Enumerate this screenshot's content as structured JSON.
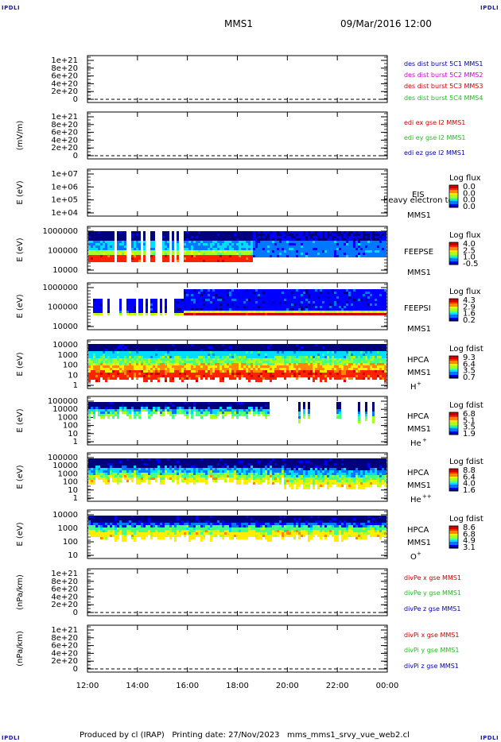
{
  "corners": {
    "tl": "IPDLI",
    "tr": "IPDLI",
    "bl": "IPDLI",
    "br": "IPDLI"
  },
  "header": {
    "spacecraft": "MMS1",
    "datetime": "09/Mar/2016 12:00"
  },
  "footer": {
    "text": "Produced by cl (IRAP)   Printing date: 27/Nov/2023   mms_mms1_srvy_vue_web2.cl"
  },
  "colors": {
    "red": "#cc0000",
    "magenta": "#cc00cc",
    "green": "#22bb22",
    "blue": "#0000aa"
  },
  "chart_data": [
    {
      "type": "line",
      "id": "des",
      "ylabel": "",
      "yticks": [
        "1e+21",
        "8e+20",
        "6e+20",
        "4e+20",
        "2e+20",
        "0"
      ],
      "series": [
        {
          "name": "des_dist_burst_5C1_MMS1",
          "color": "#0000aa"
        },
        {
          "name": "des_dist_burst_5C2_MMS2",
          "color": "#cc00cc"
        },
        {
          "name": "des_dist_burst_5C3_MMS3",
          "color": "#cc0000"
        },
        {
          "name": "des_dist_burst_5C4_MMS4",
          "color": "#22bb22"
        }
      ]
    },
    {
      "type": "line",
      "id": "edi",
      "ylabel": "(mV/m)",
      "yticks": [
        "1e+21",
        "8e+20",
        "6e+20",
        "4e+20",
        "2e+20",
        "0"
      ],
      "series": [
        {
          "name": "edi_ex_gse_l2_MMS1",
          "color": "#cc0000"
        },
        {
          "name": "edi_ey_gse_l2_MMS1",
          "color": "#22bb22"
        },
        {
          "name": "edi_ez_gse_l2_MMS1",
          "color": "#0000aa"
        }
      ]
    },
    {
      "type": "heatmap",
      "id": "eis",
      "ylabel": "E (eV)",
      "yticks": [
        "1e+07",
        "1e+06",
        "1e+05",
        "1e+04"
      ],
      "instrument": [
        "EIS",
        "MMS1"
      ],
      "overlay": "heavy electron to",
      "cbar_title": "Log flux",
      "cbar_ticks": [
        "0.0",
        "0.0",
        "0.0",
        "0.0"
      ]
    },
    {
      "type": "heatmap",
      "id": "feepse",
      "ylabel": "E (eV)",
      "yticks": [
        "1000000",
        "100000",
        "10000"
      ],
      "instrument": [
        "FEEPSE",
        "MMS1"
      ],
      "cbar_title": "Log flux",
      "cbar_ticks": [
        "4.0",
        "2.5",
        "1.0",
        "-0.5"
      ]
    },
    {
      "type": "heatmap",
      "id": "feepsi",
      "ylabel": "E (eV)",
      "yticks": [
        "1000000",
        "100000",
        "10000"
      ],
      "instrument": [
        "FEEPSI",
        "MMS1"
      ],
      "cbar_title": "Log flux",
      "cbar_ticks": [
        "4.3",
        "2.9",
        "1.6",
        "0.2"
      ]
    },
    {
      "type": "heatmap",
      "id": "hpca_h",
      "ylabel": "E (eV)",
      "yticks": [
        "10000",
        "1000",
        "100",
        "10",
        "1"
      ],
      "instrument": [
        "HPCA",
        "MMS1",
        "H"
      ],
      "species_sup": "+",
      "cbar_title": "Log fdist",
      "cbar_ticks": [
        "9.3",
        "6.4",
        "3.5",
        "0.7"
      ]
    },
    {
      "type": "heatmap",
      "id": "hpca_he",
      "ylabel": "E (eV)",
      "yticks": [
        "100000",
        "10000",
        "1000",
        "100",
        "10",
        "1"
      ],
      "instrument": [
        "HPCA",
        "MMS1",
        "He"
      ],
      "species_sup": "+",
      "cbar_title": "Log fdist",
      "cbar_ticks": [
        "6.8",
        "5.1",
        "3.5",
        "1.9"
      ]
    },
    {
      "type": "heatmap",
      "id": "hpca_hepp",
      "ylabel": "E (eV)",
      "yticks": [
        "100000",
        "10000",
        "1000",
        "100",
        "10",
        "1"
      ],
      "instrument": [
        "HPCA",
        "MMS1",
        "He"
      ],
      "species_sup": "++",
      "cbar_title": "Log fdist",
      "cbar_ticks": [
        "8.8",
        "6.4",
        "4.0",
        "1.6"
      ]
    },
    {
      "type": "heatmap",
      "id": "hpca_o",
      "ylabel": "E (eV)",
      "yticks": [
        "10000",
        "1000",
        "100",
        "10"
      ],
      "instrument": [
        "HPCA",
        "MMS1",
        "O"
      ],
      "species_sup": "+",
      "cbar_title": "Log fdist",
      "cbar_ticks": [
        "8.6",
        "6.8",
        "4.9",
        "3.1"
      ]
    },
    {
      "type": "line",
      "id": "divpe",
      "ylabel": "(nPa/km)",
      "yticks": [
        "1e+21",
        "8e+20",
        "6e+20",
        "4e+20",
        "2e+20",
        "0"
      ],
      "series": [
        {
          "name": "divPe_x_gse_MMS1",
          "color": "#cc0000"
        },
        {
          "name": "divPe_y_gse_MMS1",
          "color": "#22bb22"
        },
        {
          "name": "divPe_z_gse_MMS1",
          "color": "#0000aa"
        }
      ]
    },
    {
      "type": "line",
      "id": "divpi",
      "ylabel": "(nPa/km)",
      "yticks": [
        "1e+21",
        "8e+20",
        "6e+20",
        "4e+20",
        "2e+20",
        "0"
      ],
      "series": [
        {
          "name": "divPi_x_gse_MMS1",
          "color": "#cc0000"
        },
        {
          "name": "divPi_y_gse_MMS1",
          "color": "#22bb22"
        },
        {
          "name": "divPi_z_gse_MMS1",
          "color": "#0000aa"
        }
      ]
    }
  ],
  "xaxis": {
    "ticks": [
      "12:00",
      "14:00",
      "16:00",
      "18:00",
      "20:00",
      "22:00",
      "00:00"
    ]
  }
}
